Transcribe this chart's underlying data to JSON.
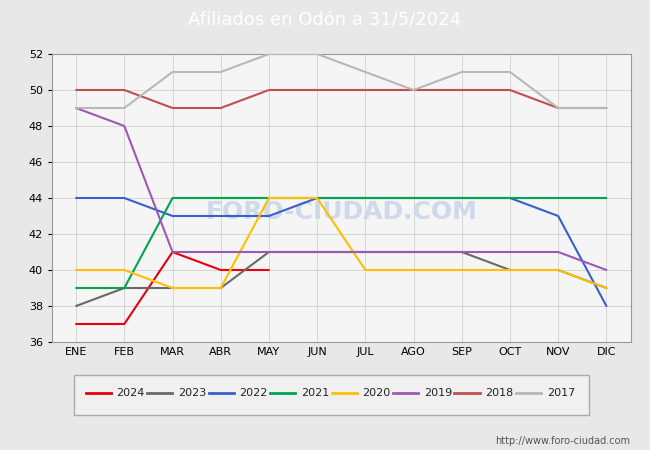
{
  "title": "Afiliados en Odón a 31/5/2024",
  "title_color": "#ffffff",
  "title_bg_color": "#4472c4",
  "ylim": [
    36,
    52
  ],
  "yticks": [
    36,
    38,
    40,
    42,
    44,
    46,
    48,
    50,
    52
  ],
  "months": [
    "ENE",
    "FEB",
    "MAR",
    "ABR",
    "MAY",
    "JUN",
    "JUL",
    "AGO",
    "SEP",
    "OCT",
    "NOV",
    "DIC"
  ],
  "watermark": "FORO-CIUDAD.COM",
  "url": "http://www.foro-ciudad.com",
  "series": {
    "2024": {
      "color": "#e8000d",
      "data": [
        37,
        37,
        41,
        40,
        40,
        null,
        null,
        null,
        null,
        null,
        null,
        null
      ]
    },
    "2023": {
      "color": "#696969",
      "data": [
        38,
        39,
        39,
        39,
        41,
        41,
        41,
        41,
        41,
        40,
        40,
        39
      ]
    },
    "2022": {
      "color": "#3a5fcd",
      "data": [
        44,
        44,
        43,
        43,
        43,
        44,
        44,
        44,
        44,
        44,
        43,
        38
      ]
    },
    "2021": {
      "color": "#00a550",
      "data": [
        39,
        39,
        44,
        44,
        44,
        44,
        44,
        44,
        44,
        44,
        44,
        44
      ]
    },
    "2020": {
      "color": "#ffc000",
      "data": [
        40,
        40,
        39,
        39,
        44,
        44,
        40,
        40,
        40,
        40,
        40,
        39
      ]
    },
    "2019": {
      "color": "#9b59b6",
      "data": [
        49,
        48,
        41,
        41,
        41,
        41,
        41,
        41,
        41,
        41,
        41,
        40
      ]
    },
    "2018": {
      "color": "#c0504d",
      "data": [
        50,
        50,
        49,
        49,
        50,
        50,
        50,
        50,
        50,
        50,
        49,
        49
      ]
    },
    "2017": {
      "color": "#b8b8b8",
      "data": [
        49,
        49,
        51,
        51,
        52,
        52,
        51,
        50,
        51,
        51,
        49,
        49
      ]
    }
  },
  "legend_order": [
    "2024",
    "2023",
    "2022",
    "2021",
    "2020",
    "2019",
    "2018",
    "2017"
  ],
  "bg_color": "#e8e8e8",
  "plot_bg_color": "#f5f5f5",
  "grid_color": "#d0d0d0"
}
